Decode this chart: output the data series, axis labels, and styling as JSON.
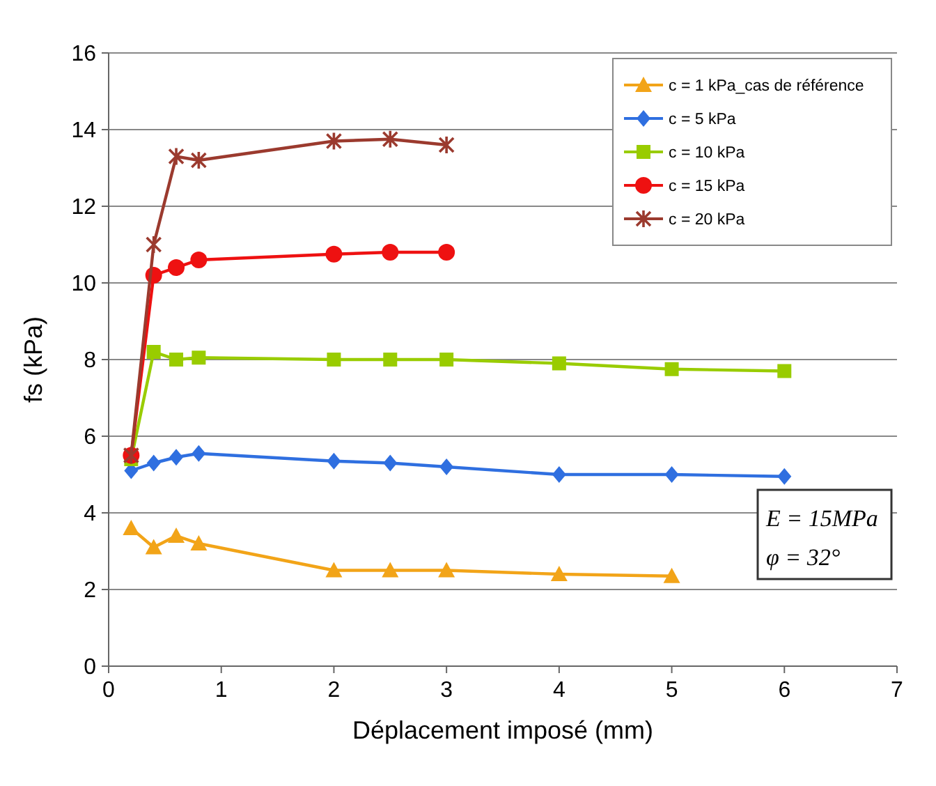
{
  "chart_data": {
    "type": "line",
    "xlabel": "Déplacement imposé (mm)",
    "ylabel": "fs (kPa)",
    "x": [
      0.2,
      0.4,
      0.6,
      0.8,
      2,
      2.5,
      3,
      4,
      5,
      6
    ],
    "xlim": [
      0,
      7
    ],
    "xticks": [
      0,
      1,
      2,
      3,
      4,
      5,
      6,
      7
    ],
    "ylim": [
      0,
      16
    ],
    "yticks": [
      0,
      2,
      4,
      6,
      8,
      10,
      12,
      14,
      16
    ],
    "grid": "y",
    "legend": "top right",
    "annotations": [
      "E = 15MPa",
      "φ = 32°"
    ],
    "series": [
      {
        "name": "c = 1 kPa_cas de référence",
        "color": "#f2a418",
        "marker": "triangle",
        "values": [
          3.6,
          3.1,
          3.4,
          3.2,
          2.5,
          2.5,
          2.5,
          2.4,
          2.35,
          null
        ]
      },
      {
        "name": "c = 5 kPa",
        "color": "#2f6fe0",
        "marker": "diamond",
        "values": [
          5.1,
          5.3,
          5.45,
          5.55,
          5.35,
          5.3,
          5.2,
          5.0,
          5.0,
          4.95
        ]
      },
      {
        "name": "c = 10 kPa",
        "color": "#99cc00",
        "marker": "square",
        "values": [
          5.4,
          8.2,
          8.0,
          8.05,
          8.0,
          8.0,
          8.0,
          7.9,
          7.75,
          7.7
        ]
      },
      {
        "name": "c = 15 kPa",
        "color": "#ee1111",
        "marker": "circle",
        "values": [
          5.5,
          10.2,
          10.4,
          10.6,
          10.75,
          10.8,
          10.8,
          null,
          null,
          null
        ]
      },
      {
        "name": "c = 20 kPa",
        "color": "#9b3a2e",
        "marker": "cross",
        "values": [
          5.5,
          11.0,
          13.3,
          13.2,
          13.7,
          13.75,
          13.6,
          null,
          null,
          null
        ]
      }
    ]
  }
}
